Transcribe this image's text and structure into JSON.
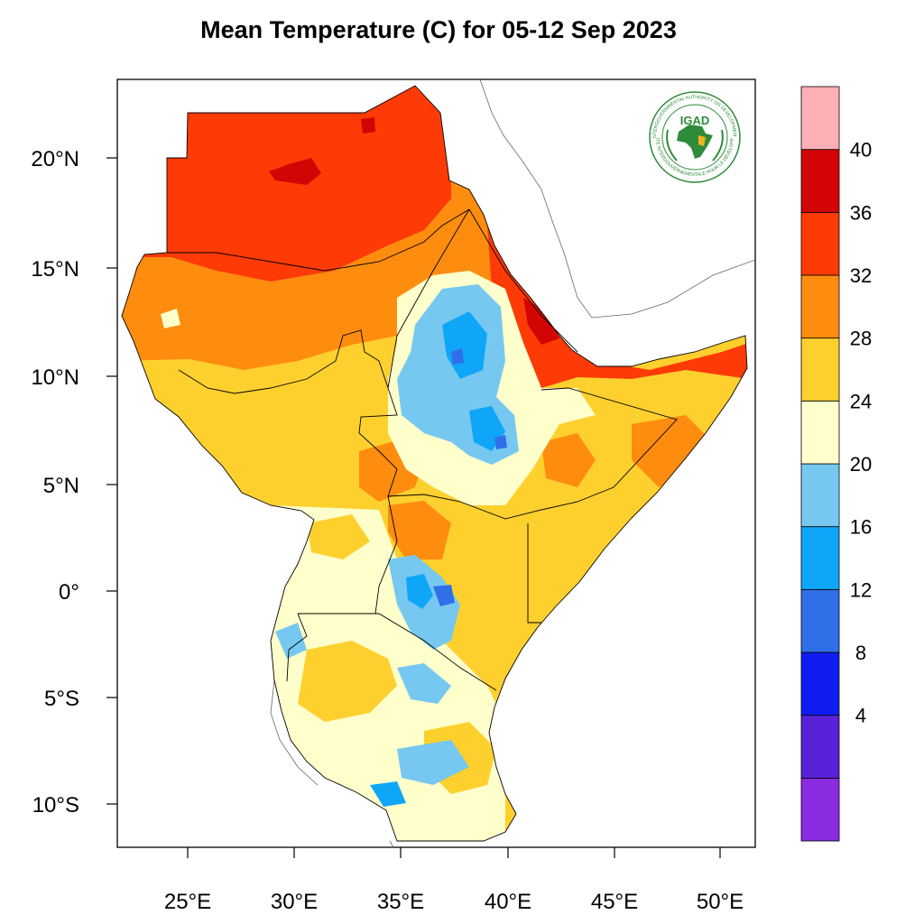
{
  "title": "Mean Temperature (C) for 05-12 Sep 2023",
  "logo": {
    "acronym": "IGAD",
    "ring_text_en": "INTERGOVERNMENTAL AUTHORITY ON DEVELOPMENT",
    "ring_text_fr": "AUTORITÉ INTERGOUVERNEMENTALE POUR LE DÉVELOPPEMENT"
  },
  "map": {
    "lat_labels": [
      "20°N",
      "15°N",
      "10°N",
      "5°N",
      "0°",
      "5°S",
      "10°S"
    ],
    "lon_labels": [
      "25°E",
      "30°E",
      "35°E",
      "40°E",
      "45°E",
      "50°E"
    ]
  },
  "colorbar": {
    "bins": [
      {
        "color": "#8b2be2"
      },
      {
        "color": "#5a22d8"
      },
      {
        "color": "#0f1df2"
      },
      {
        "color": "#2f6fe8"
      },
      {
        "color": "#0fa6f8"
      },
      {
        "color": "#77c8f0"
      },
      {
        "color": "#ffffcc"
      },
      {
        "color": "#fed02e"
      },
      {
        "color": "#fe8c0f"
      },
      {
        "color": "#fe3a06"
      },
      {
        "color": "#d20404"
      },
      {
        "color": "#ffb0b5"
      }
    ],
    "labels": [
      "4",
      "8",
      "12",
      "16",
      "20",
      "24",
      "28",
      "32",
      "36",
      "40"
    ]
  }
}
